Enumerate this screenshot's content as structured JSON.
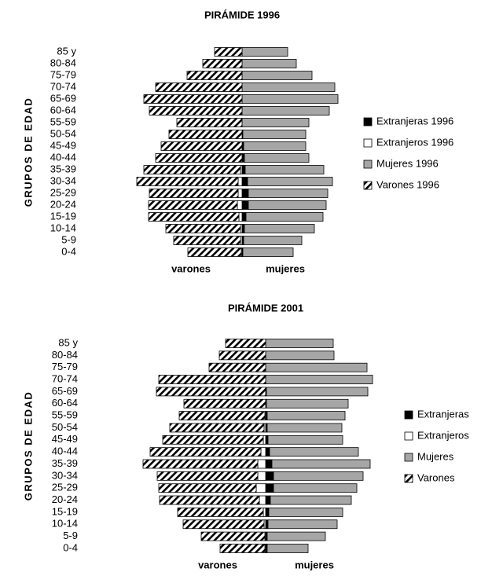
{
  "chart_data": [
    {
      "type": "pyramid",
      "title": "PIRÁMIDE 1996",
      "y_label": "GRUPOS DE EDAD",
      "left_label": "varones",
      "right_label": "mujeres",
      "categories": [
        "85 y",
        "80-84",
        "75-79",
        "70-74",
        "65-69",
        "60-64",
        "55-59",
        "50-54",
        "45-49",
        "40-44",
        "35-39",
        "30-34",
        "25-29",
        "20-24",
        "15-19",
        "10-14",
        "5-9",
        "0-4"
      ],
      "series": [
        {
          "name": "Extranjeras 1996",
          "color": "#000000",
          "side": "right",
          "values": [
            0,
            0,
            0,
            0,
            0,
            0,
            0,
            1,
            2,
            3,
            4,
            7,
            8,
            8,
            5,
            3,
            2,
            1
          ]
        },
        {
          "name": "Extranjeros 1996",
          "color": "#ffffff",
          "side": "left",
          "values": [
            0,
            0,
            0,
            0,
            0,
            0,
            0,
            0,
            0,
            0,
            2,
            5,
            5,
            6,
            4,
            2,
            2,
            1
          ]
        },
        {
          "name": "Mujeres 1996",
          "color": "#a6a6a6",
          "side": "right",
          "values": [
            58,
            69,
            89,
            118,
            122,
            111,
            85,
            80,
            79,
            82,
            100,
            108,
            101,
            99,
            98,
            89,
            74,
            64
          ]
        },
        {
          "name": "Varones 1996",
          "color": "#000000",
          "pattern": "hatch",
          "side": "left",
          "values": [
            35,
            50,
            70,
            110,
            125,
            118,
            83,
            93,
            103,
            110,
            123,
            129,
            113,
            113,
            115,
            95,
            85,
            68
          ]
        }
      ]
    },
    {
      "type": "pyramid",
      "title": "PIRÁMIDE 2001",
      "y_label": "GRUPOS DE EDAD",
      "left_label": "varones",
      "right_label": "mujeres",
      "categories": [
        "85 y",
        "80-84",
        "75-79",
        "70-74",
        "65-69",
        "60-64",
        "55-59",
        "50-54",
        "45-49",
        "40-44",
        "35-39",
        "30-34",
        "25-29",
        "20-24",
        "15-19",
        "10-14",
        "5-9",
        "0-4"
      ],
      "series": [
        {
          "name": "Extranjeras",
          "color": "#000000",
          "side": "right",
          "values": [
            0,
            0,
            0,
            0,
            1,
            1,
            2,
            2,
            3,
            5,
            8,
            10,
            10,
            6,
            4,
            3,
            2,
            2
          ]
        },
        {
          "name": "Extranjeros",
          "color": "#ffffff",
          "side": "left",
          "values": [
            0,
            0,
            0,
            0,
            0,
            0,
            1,
            2,
            3,
            6,
            10,
            10,
            12,
            8,
            3,
            2,
            1,
            1
          ]
        },
        {
          "name": "Mujeres",
          "color": "#a6a6a6",
          "side": "right",
          "values": [
            86,
            87,
            129,
            136,
            129,
            104,
            99,
            95,
            95,
            113,
            125,
            114,
            106,
            103,
            94,
            88,
            74,
            52
          ]
        },
        {
          "name": "Varones",
          "color": "#000000",
          "pattern": "hatch",
          "side": "left",
          "values": [
            51,
            59,
            72,
            136,
            139,
            104,
            109,
            120,
            128,
            141,
            146,
            128,
            124,
            127,
            109,
            103,
            81,
            57
          ]
        }
      ]
    }
  ]
}
